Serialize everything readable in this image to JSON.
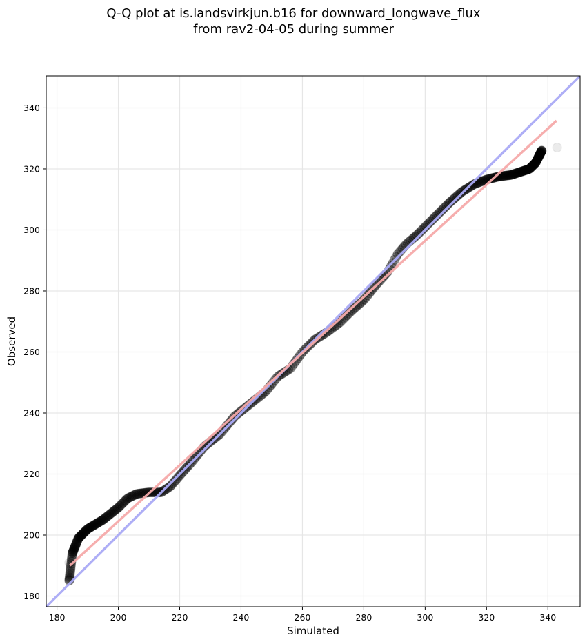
{
  "chart_data": {
    "type": "scatter",
    "title_line1": "Q-Q plot at is.landsvirkjun.b16 for downward_longwave_flux",
    "title_line2": "from rav2-04-05 during summer",
    "xlabel": "Simulated",
    "ylabel": "Observed",
    "xlim": [
      176.5,
      350.5
    ],
    "ylim": [
      176.5,
      350.5
    ],
    "xticks": [
      180,
      200,
      220,
      240,
      260,
      280,
      300,
      320,
      340
    ],
    "yticks": [
      180,
      200,
      220,
      240,
      260,
      280,
      300,
      320,
      340
    ],
    "grid": true,
    "colors": {
      "points": "#000000",
      "identity_line": "#aaaaf5",
      "fit_line": "#f5aaaa"
    },
    "identity_line": {
      "x": [
        176.5,
        350.5
      ],
      "y": [
        176.5,
        350.5
      ]
    },
    "fit_line": {
      "x": [
        184.2,
        342.8
      ],
      "y": [
        190.0,
        335.8
      ]
    },
    "quantile_curve": {
      "x": [
        184,
        185,
        187,
        190,
        195,
        200,
        203,
        206,
        210,
        214,
        217,
        220,
        224,
        228,
        233,
        238,
        243,
        248,
        252,
        256,
        260,
        264,
        268,
        272,
        276,
        280,
        284,
        288,
        291,
        294,
        297,
        300,
        304,
        308,
        312,
        316,
        320,
        324,
        328,
        331,
        334,
        336,
        338
      ],
      "y": [
        185,
        194,
        199,
        202,
        205,
        209,
        212,
        213.5,
        214,
        214,
        216,
        219.5,
        224,
        229,
        233,
        239,
        243,
        247,
        252,
        254.5,
        260,
        264,
        266.5,
        269.5,
        273.5,
        277,
        282,
        286.5,
        292,
        295.5,
        298,
        301,
        305,
        309,
        312.5,
        315,
        316.5,
        317.5,
        318,
        319,
        320,
        322,
        326
      ]
    },
    "extra_points": [
      {
        "x": 184,
        "y": 191
      },
      {
        "x": 343,
        "y": 327
      }
    ]
  }
}
